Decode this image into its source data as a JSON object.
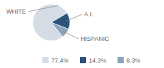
{
  "chart_data": {
    "type": "pie",
    "categories": [
      "WHITE",
      "A.I.",
      "HISPANIC"
    ],
    "values": [
      77.4,
      14.3,
      8.3
    ],
    "value_labels": [
      "77.4%",
      "14.3%",
      "8.3%"
    ],
    "colors": [
      "#d5dce6",
      "#2c527a",
      "#8ba3bd"
    ],
    "legend": "bottom"
  }
}
